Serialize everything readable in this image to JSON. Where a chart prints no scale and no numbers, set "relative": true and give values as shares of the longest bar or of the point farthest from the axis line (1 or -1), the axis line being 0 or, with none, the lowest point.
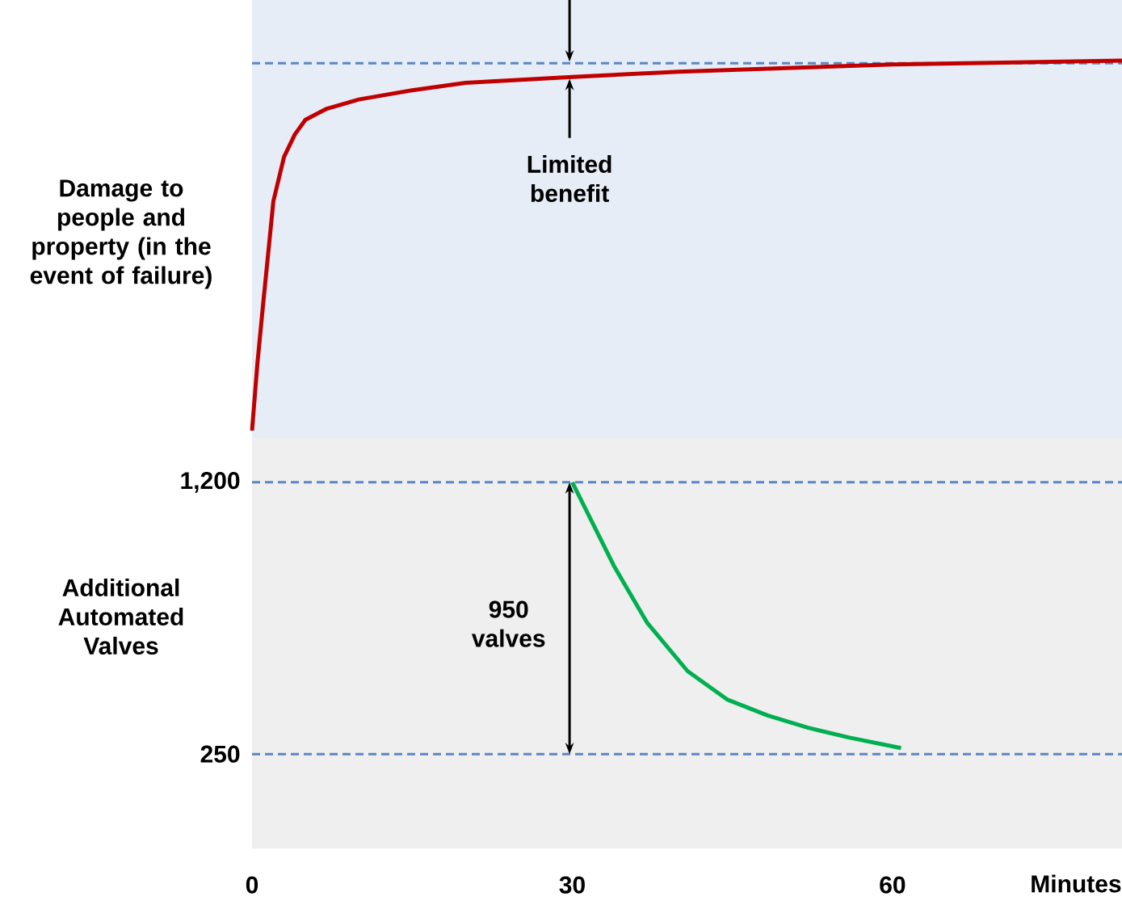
{
  "chart_data": [
    {
      "type": "line",
      "relative": true,
      "ylabel": "Damage to people and property (in the event of failure)",
      "xlim": [
        0,
        81.5
      ],
      "xticks": [
        0,
        30,
        60
      ],
      "tick_labels": false,
      "series": [
        {
          "color": "#c00000",
          "x": [
            0,
            0.5,
            1,
            2,
            3,
            4,
            5,
            7,
            10,
            15,
            20,
            30,
            40,
            50,
            60,
            81.5
          ],
          "values": [
            0,
            0.18,
            0.33,
            0.62,
            0.74,
            0.8,
            0.84,
            0.87,
            0.895,
            0.92,
            0.94,
            0.956,
            0.97,
            0.98,
            0.99,
            1
          ]
        }
      ],
      "ref_lines": [
        {
          "axis": "y",
          "value": 0.993,
          "color": "#5b87c5",
          "line_style": "dashed"
        }
      ],
      "annotations": [
        "Limited benefit"
      ]
    },
    {
      "type": "line",
      "ylabel": "Additional Automated Valves",
      "xlabel": "Minutes",
      "xlim": [
        0,
        81.5
      ],
      "ylim": [
        -80,
        1355
      ],
      "xticks": [
        0,
        30,
        60
      ],
      "yticks": [
        {
          "value": 250,
          "label": "250"
        },
        {
          "value": 1200,
          "label": "1,200"
        }
      ],
      "series": [
        {
          "color": "#00b050",
          "x": [
            30,
            33.9,
            37,
            40.8,
            44.5,
            48.3,
            52.1,
            55.9,
            60.8
          ],
          "values": [
            1200,
            908,
            710,
            540,
            441,
            385,
            342,
            308,
            271
          ]
        }
      ],
      "ref_lines": [
        {
          "axis": "y",
          "value": 1200,
          "color": "#5b87c5",
          "line_style": "dashed"
        },
        {
          "axis": "y",
          "value": 250,
          "color": "#5b87c5",
          "line_style": "dashed"
        }
      ],
      "annotations": [
        "950 valves"
      ]
    }
  ]
}
